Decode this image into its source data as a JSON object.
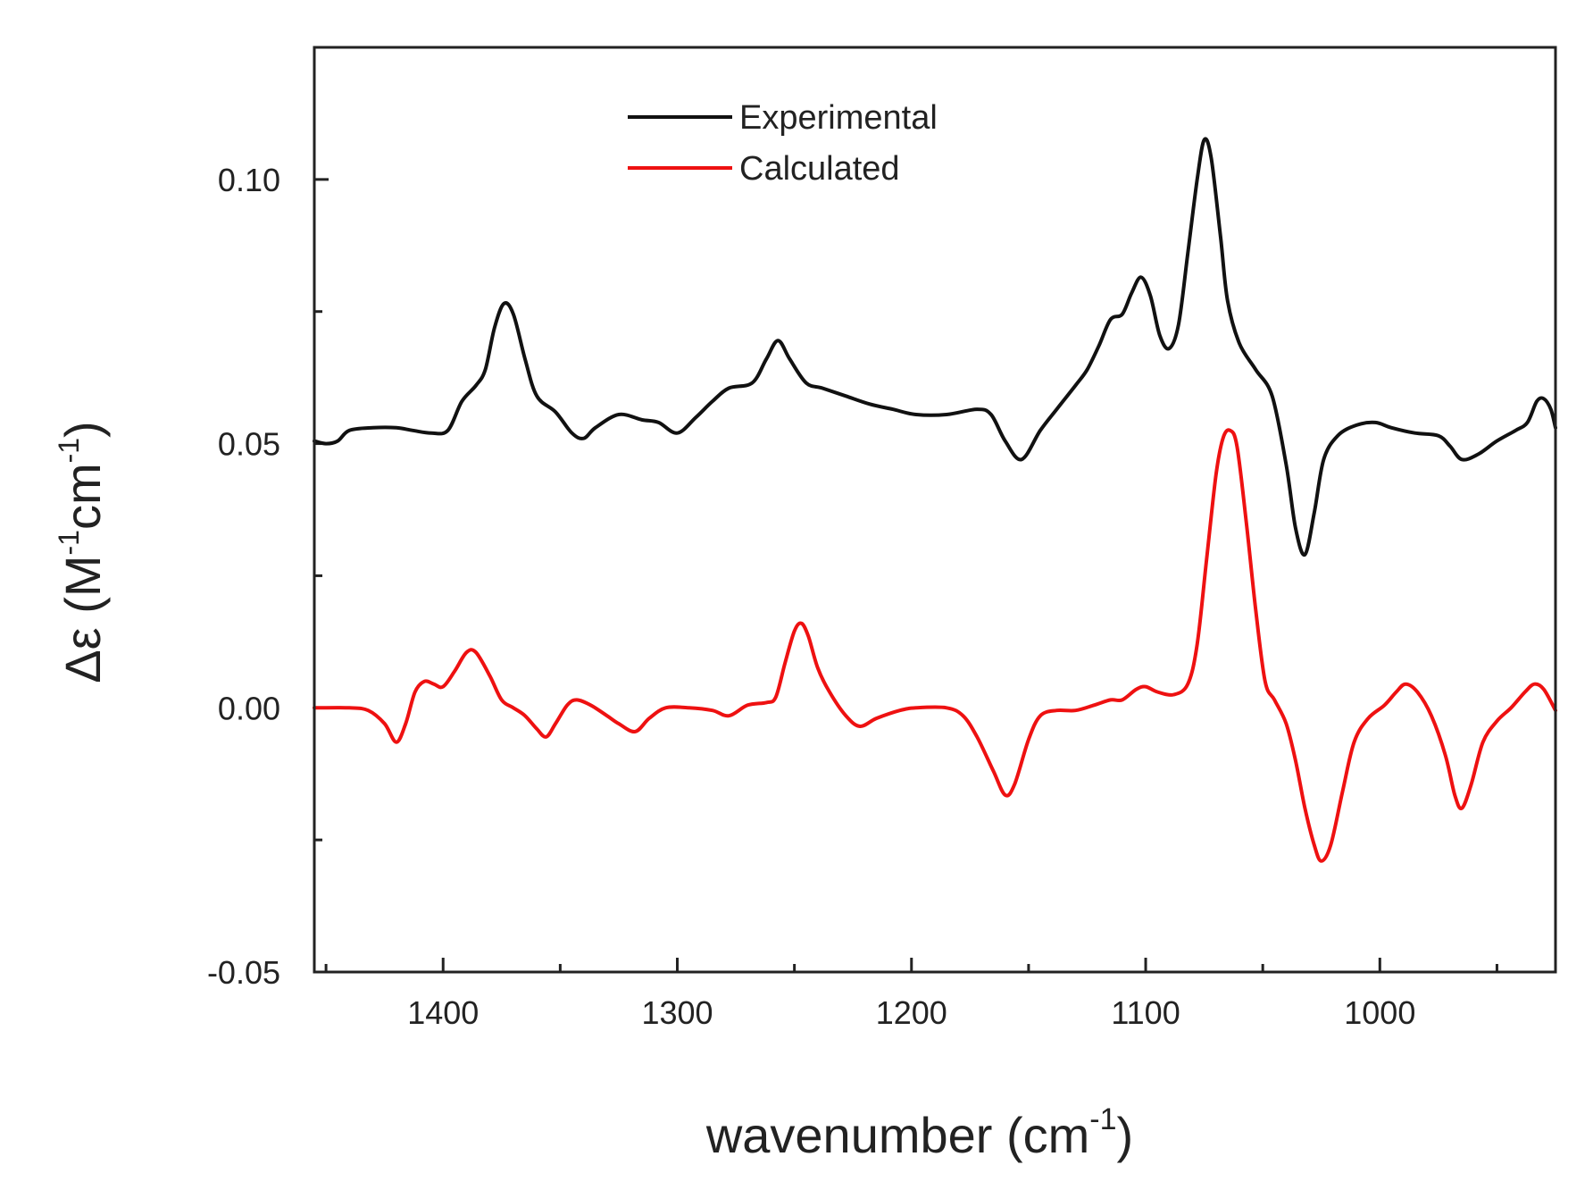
{
  "chart_data": {
    "type": "line",
    "title": "",
    "xlabel": {
      "base": "wavenumber (cm",
      "sup": "-1",
      "tail": ")"
    },
    "ylabel": {
      "prefix": "Δε (M",
      "sup1": "-1",
      "mid": "cm",
      "sup2": "-1",
      "tail": ")"
    },
    "xlim": [
      1455,
      925
    ],
    "ylim": [
      -0.05,
      0.125
    ],
    "x_ticks": [
      1400,
      1300,
      1200,
      1100,
      1000
    ],
    "x_tick_labels": [
      "1400",
      "1300",
      "1200",
      "1100",
      "1000"
    ],
    "x_minor_ticks": [
      1450,
      1350,
      1250,
      1150,
      1050,
      950
    ],
    "y_ticks": [
      -0.05,
      0.0,
      0.05,
      0.1
    ],
    "y_tick_labels": [
      "-0.05",
      "0.00",
      "0.05",
      "0.10"
    ],
    "y_minor_ticks": [
      -0.025,
      0.025,
      0.075
    ],
    "legend_position": "top-center",
    "series": [
      {
        "name": "Experimental",
        "color": "#111111",
        "points": [
          [
            1455,
            0.0505
          ],
          [
            1450,
            0.05
          ],
          [
            1445,
            0.0505
          ],
          [
            1440,
            0.0525
          ],
          [
            1430,
            0.053
          ],
          [
            1420,
            0.053
          ],
          [
            1413,
            0.0525
          ],
          [
            1405,
            0.052
          ],
          [
            1398,
            0.0525
          ],
          [
            1392,
            0.058
          ],
          [
            1386,
            0.061
          ],
          [
            1382,
            0.064
          ],
          [
            1378,
            0.072
          ],
          [
            1374,
            0.0765
          ],
          [
            1370,
            0.0745
          ],
          [
            1365,
            0.066
          ],
          [
            1360,
            0.059
          ],
          [
            1352,
            0.056
          ],
          [
            1345,
            0.052
          ],
          [
            1340,
            0.051
          ],
          [
            1335,
            0.053
          ],
          [
            1325,
            0.0555
          ],
          [
            1315,
            0.0545
          ],
          [
            1308,
            0.054
          ],
          [
            1300,
            0.052
          ],
          [
            1292,
            0.055
          ],
          [
            1285,
            0.058
          ],
          [
            1278,
            0.0605
          ],
          [
            1268,
            0.0615
          ],
          [
            1262,
            0.066
          ],
          [
            1257,
            0.0695
          ],
          [
            1252,
            0.066
          ],
          [
            1245,
            0.0615
          ],
          [
            1238,
            0.0605
          ],
          [
            1228,
            0.059
          ],
          [
            1218,
            0.0575
          ],
          [
            1208,
            0.0565
          ],
          [
            1198,
            0.0555
          ],
          [
            1185,
            0.0555
          ],
          [
            1172,
            0.0565
          ],
          [
            1166,
            0.0555
          ],
          [
            1160,
            0.0505
          ],
          [
            1153,
            0.047
          ],
          [
            1145,
            0.0525
          ],
          [
            1138,
            0.0565
          ],
          [
            1130,
            0.061
          ],
          [
            1125,
            0.064
          ],
          [
            1120,
            0.0685
          ],
          [
            1115,
            0.0735
          ],
          [
            1110,
            0.0745
          ],
          [
            1106,
            0.0785
          ],
          [
            1102,
            0.0815
          ],
          [
            1098,
            0.078
          ],
          [
            1094,
            0.0705
          ],
          [
            1090,
            0.068
          ],
          [
            1086,
            0.0725
          ],
          [
            1082,
            0.086
          ],
          [
            1078,
            0.1
          ],
          [
            1075,
            0.1075
          ],
          [
            1072,
            0.104
          ],
          [
            1068,
            0.089
          ],
          [
            1065,
            0.077
          ],
          [
            1060,
            0.069
          ],
          [
            1053,
            0.064
          ],
          [
            1046,
            0.059
          ],
          [
            1040,
            0.046
          ],
          [
            1036,
            0.034
          ],
          [
            1032,
            0.029
          ],
          [
            1028,
            0.037
          ],
          [
            1024,
            0.047
          ],
          [
            1018,
            0.0515
          ],
          [
            1010,
            0.0535
          ],
          [
            1002,
            0.054
          ],
          [
            995,
            0.053
          ],
          [
            985,
            0.052
          ],
          [
            975,
            0.0515
          ],
          [
            970,
            0.0495
          ],
          [
            965,
            0.047
          ],
          [
            958,
            0.048
          ],
          [
            950,
            0.0505
          ],
          [
            942,
            0.0525
          ],
          [
            937,
            0.054
          ],
          [
            933,
            0.058
          ],
          [
            930,
            0.0585
          ],
          [
            927,
            0.0565
          ],
          [
            925,
            0.053
          ]
        ]
      },
      {
        "name": "Calculated",
        "color": "#ee1111",
        "points": [
          [
            1455,
            0.0
          ],
          [
            1440,
            0.0
          ],
          [
            1432,
            -0.0005
          ],
          [
            1425,
            -0.003
          ],
          [
            1420,
            -0.0065
          ],
          [
            1416,
            -0.003
          ],
          [
            1412,
            0.003
          ],
          [
            1408,
            0.005
          ],
          [
            1404,
            0.0045
          ],
          [
            1400,
            0.004
          ],
          [
            1395,
            0.007
          ],
          [
            1390,
            0.0105
          ],
          [
            1386,
            0.0105
          ],
          [
            1380,
            0.006
          ],
          [
            1375,
            0.0015
          ],
          [
            1370,
            0.0
          ],
          [
            1365,
            -0.0015
          ],
          [
            1360,
            -0.004
          ],
          [
            1356,
            -0.0055
          ],
          [
            1352,
            -0.003
          ],
          [
            1347,
            0.0005
          ],
          [
            1343,
            0.0015
          ],
          [
            1337,
            0.0005
          ],
          [
            1330,
            -0.0015
          ],
          [
            1325,
            -0.003
          ],
          [
            1318,
            -0.0045
          ],
          [
            1312,
            -0.002
          ],
          [
            1305,
            0.0
          ],
          [
            1295,
            0.0
          ],
          [
            1285,
            -0.0005
          ],
          [
            1278,
            -0.0015
          ],
          [
            1270,
            0.0005
          ],
          [
            1262,
            0.001
          ],
          [
            1258,
            0.002
          ],
          [
            1254,
            0.0085
          ],
          [
            1250,
            0.0145
          ],
          [
            1247,
            0.016
          ],
          [
            1244,
            0.0135
          ],
          [
            1240,
            0.0075
          ],
          [
            1235,
            0.003
          ],
          [
            1228,
            -0.0015
          ],
          [
            1222,
            -0.0035
          ],
          [
            1215,
            -0.002
          ],
          [
            1205,
            -0.0005
          ],
          [
            1198,
            0.0
          ],
          [
            1185,
            0.0
          ],
          [
            1178,
            -0.0015
          ],
          [
            1172,
            -0.0055
          ],
          [
            1165,
            -0.012
          ],
          [
            1160,
            -0.0165
          ],
          [
            1156,
            -0.0145
          ],
          [
            1150,
            -0.006
          ],
          [
            1145,
            -0.0015
          ],
          [
            1138,
            -0.0005
          ],
          [
            1130,
            -0.0005
          ],
          [
            1122,
            0.0005
          ],
          [
            1115,
            0.0015
          ],
          [
            1110,
            0.0015
          ],
          [
            1104,
            0.0035
          ],
          [
            1100,
            0.004
          ],
          [
            1095,
            0.003
          ],
          [
            1088,
            0.0025
          ],
          [
            1082,
            0.0045
          ],
          [
            1078,
            0.012
          ],
          [
            1074,
            0.028
          ],
          [
            1070,
            0.044
          ],
          [
            1067,
            0.051
          ],
          [
            1064,
            0.0525
          ],
          [
            1061,
            0.0495
          ],
          [
            1057,
            0.035
          ],
          [
            1053,
            0.0185
          ],
          [
            1049,
            0.005
          ],
          [
            1045,
            0.0015
          ],
          [
            1040,
            -0.003
          ],
          [
            1036,
            -0.01
          ],
          [
            1032,
            -0.019
          ],
          [
            1028,
            -0.026
          ],
          [
            1025,
            -0.029
          ],
          [
            1021,
            -0.026
          ],
          [
            1016,
            -0.016
          ],
          [
            1011,
            -0.0065
          ],
          [
            1005,
            -0.002
          ],
          [
            998,
            0.0005
          ],
          [
            993,
            0.003
          ],
          [
            989,
            0.0045
          ],
          [
            984,
            0.003
          ],
          [
            978,
            -0.0015
          ],
          [
            972,
            -0.009
          ],
          [
            968,
            -0.0165
          ],
          [
            965,
            -0.019
          ],
          [
            961,
            -0.0145
          ],
          [
            956,
            -0.0065
          ],
          [
            950,
            -0.0025
          ],
          [
            944,
            0.0
          ],
          [
            938,
            0.003
          ],
          [
            934,
            0.0045
          ],
          [
            930,
            0.0035
          ],
          [
            925,
            -0.0005
          ]
        ]
      }
    ]
  }
}
